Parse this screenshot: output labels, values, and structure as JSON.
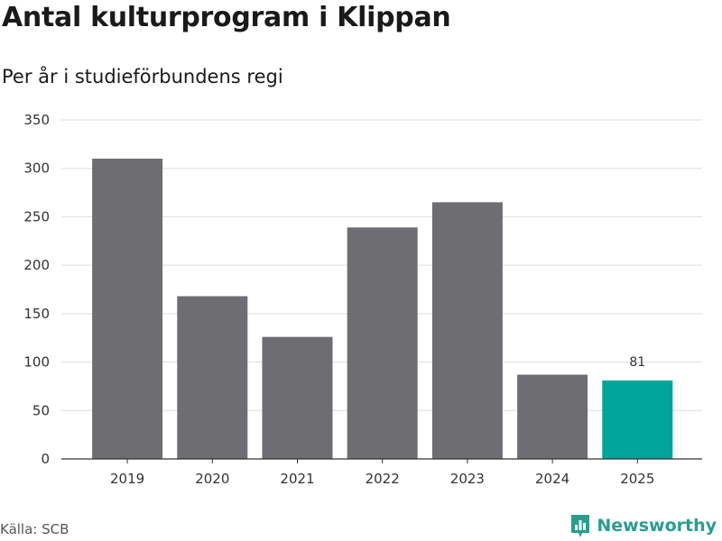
{
  "header": {
    "title": "Antal kulturprogram i Klippan",
    "subtitle": "Per år i studieförbundens regi"
  },
  "footer": {
    "source": "Källa: SCB",
    "brand": "Newsworthy",
    "brand_icon": "bar-chart-logo-icon"
  },
  "colors": {
    "bar": "#6e6d72",
    "highlight": "#00a499",
    "grid": "#dddddd",
    "axis": "#333333",
    "brand": "#2a9d8f"
  },
  "chart_data": {
    "type": "bar",
    "title": "Antal kulturprogram i Klippan",
    "subtitle": "Per år i studieförbundens regi",
    "categories": [
      "2019",
      "2020",
      "2021",
      "2022",
      "2023",
      "2024",
      "2025"
    ],
    "values": [
      310,
      168,
      126,
      239,
      265,
      87,
      81
    ],
    "highlight_index": 6,
    "data_labels": [
      {
        "index": 6,
        "text": "81"
      }
    ],
    "ylim": [
      0,
      350
    ],
    "yticks": [
      0,
      50,
      100,
      150,
      200,
      250,
      300,
      350
    ],
    "grid": true,
    "legend": "none"
  }
}
